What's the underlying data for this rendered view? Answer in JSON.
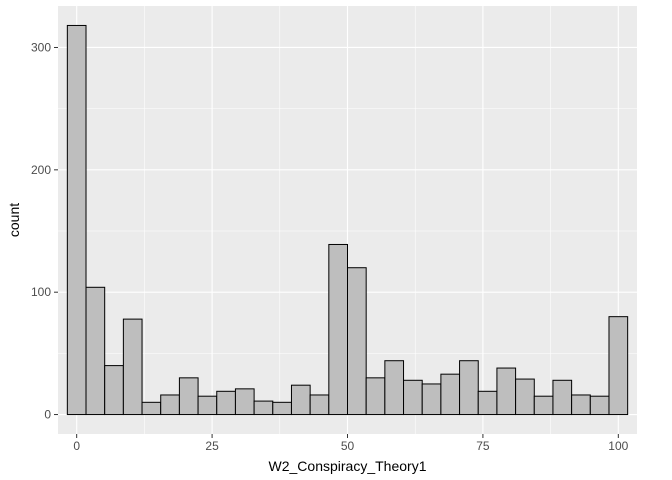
{
  "chart_data": {
    "type": "bar",
    "histogram": true,
    "title": "",
    "xlabel": "W2_Conspiracy_Theory1",
    "ylabel": "count",
    "bin_width": 3.448,
    "bin_centers": [
      0.0,
      3.448,
      6.897,
      10.345,
      13.793,
      17.241,
      20.69,
      24.138,
      27.586,
      31.034,
      34.483,
      37.931,
      41.379,
      44.828,
      48.276,
      51.724,
      55.172,
      58.621,
      62.069,
      65.517,
      68.966,
      72.414,
      75.862,
      79.31,
      82.759,
      86.207,
      89.655,
      93.103,
      96.552,
      100.0
    ],
    "values": [
      318,
      104,
      40,
      78,
      10,
      16,
      30,
      15,
      19,
      21,
      11,
      10,
      24,
      16,
      139,
      120,
      30,
      44,
      28,
      25,
      33,
      44,
      19,
      38,
      29,
      15,
      28,
      16,
      15,
      80
    ],
    "xlim": [
      -3.448,
      103.448
    ],
    "ylim": [
      -15.9,
      333.9
    ],
    "x_ticks": [
      0,
      25,
      50,
      75,
      100
    ],
    "y_ticks": [
      0,
      100,
      200,
      300
    ],
    "grid": true,
    "legend": "none",
    "colors": {
      "panel_background": "#ebebeb",
      "grid_major": "#ffffff",
      "bar_fill": "#bebebe",
      "bar_stroke": "#000000",
      "tick_label": "#4d4d4d"
    }
  }
}
